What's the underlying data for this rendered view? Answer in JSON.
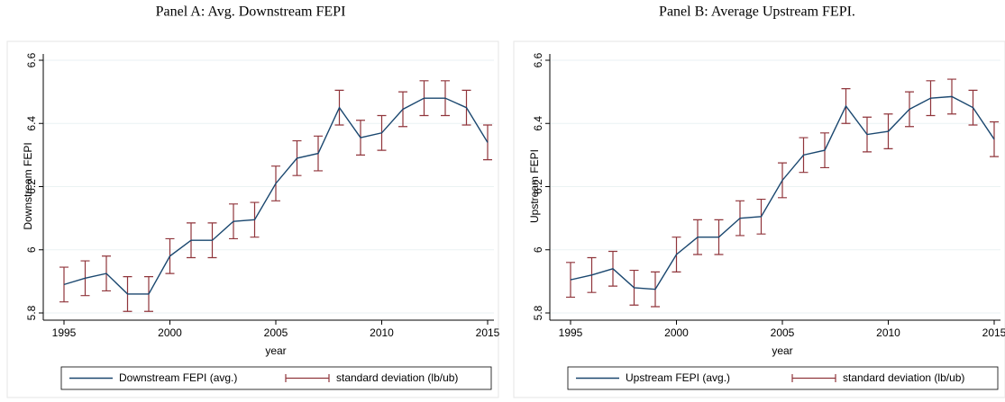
{
  "chart_data": [
    {
      "type": "line",
      "title": "Panel A: Avg. Downstream FEPI",
      "xlabel": "year",
      "ylabel": "Downstream FEPI",
      "x": [
        1995,
        1996,
        1997,
        1998,
        1999,
        2000,
        2001,
        2002,
        2003,
        2004,
        2005,
        2006,
        2007,
        2008,
        2009,
        2010,
        2011,
        2012,
        2013,
        2014,
        2015
      ],
      "series": [
        {
          "name": "Downstream FEPI (avg.)",
          "color": "#1a476f",
          "values": [
            5.89,
            5.91,
            5.925,
            5.86,
            5.86,
            5.98,
            6.03,
            6.03,
            6.09,
            6.095,
            6.21,
            6.29,
            6.305,
            6.45,
            6.355,
            6.37,
            6.445,
            6.48,
            6.48,
            6.45,
            6.34
          ]
        },
        {
          "name": "standard deviation (lb/ub)",
          "color": "#90353b",
          "lower": [
            5.835,
            5.855,
            5.87,
            5.805,
            5.805,
            5.925,
            5.975,
            5.975,
            6.035,
            6.04,
            6.155,
            6.235,
            6.25,
            6.395,
            6.3,
            6.315,
            6.39,
            6.425,
            6.425,
            6.395,
            6.285
          ],
          "upper": [
            5.945,
            5.965,
            5.98,
            5.915,
            5.915,
            6.035,
            6.085,
            6.085,
            6.145,
            6.15,
            6.265,
            6.345,
            6.36,
            6.505,
            6.41,
            6.425,
            6.5,
            6.535,
            6.535,
            6.505,
            6.395
          ]
        }
      ],
      "xlim": [
        1995,
        2015
      ],
      "xticks": [
        1995,
        2000,
        2005,
        2010,
        2015
      ],
      "ylim": [
        5.8,
        6.6
      ],
      "yticks": [
        5.8,
        6,
        6.2,
        6.4,
        6.6
      ],
      "grid": true
    },
    {
      "type": "line",
      "title": "Panel B: Average Upstream FEPI.",
      "xlabel": "year",
      "ylabel": "Upstream FEPI",
      "x": [
        1995,
        1996,
        1997,
        1998,
        1999,
        2000,
        2001,
        2002,
        2003,
        2004,
        2005,
        2006,
        2007,
        2008,
        2009,
        2010,
        2011,
        2012,
        2013,
        2014,
        2015
      ],
      "series": [
        {
          "name": "Upstream FEPI (avg.)",
          "color": "#1a476f",
          "values": [
            5.905,
            5.92,
            5.94,
            5.88,
            5.875,
            5.985,
            6.04,
            6.04,
            6.1,
            6.105,
            6.22,
            6.3,
            6.315,
            6.455,
            6.365,
            6.375,
            6.445,
            6.48,
            6.485,
            6.45,
            6.35
          ]
        },
        {
          "name": "standard deviation (lb/ub)",
          "color": "#90353b",
          "lower": [
            5.85,
            5.865,
            5.885,
            5.825,
            5.82,
            5.93,
            5.985,
            5.985,
            6.045,
            6.05,
            6.165,
            6.245,
            6.26,
            6.4,
            6.31,
            6.32,
            6.39,
            6.425,
            6.43,
            6.395,
            6.295
          ],
          "upper": [
            5.96,
            5.975,
            5.995,
            5.935,
            5.93,
            6.04,
            6.095,
            6.095,
            6.155,
            6.16,
            6.275,
            6.355,
            6.37,
            6.51,
            6.42,
            6.43,
            6.5,
            6.535,
            6.54,
            6.505,
            6.405
          ]
        }
      ],
      "xlim": [
        1995,
        2015
      ],
      "xticks": [
        1995,
        2000,
        2005,
        2010,
        2015
      ],
      "ylim": [
        5.8,
        6.6
      ],
      "yticks": [
        5.8,
        6,
        6.2,
        6.4,
        6.6
      ],
      "grid": true
    }
  ]
}
